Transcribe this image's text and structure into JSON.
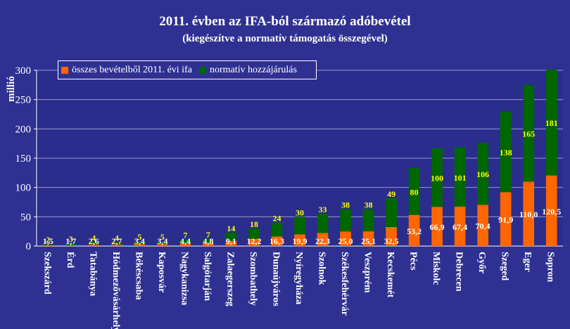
{
  "colors": {
    "background": "#2e3192",
    "plot_area": "#2a2d8c",
    "series_ifa": "#ff6600",
    "series_normativ": "#006600",
    "grid": "#9999cc",
    "label_ifa": "#ffffff",
    "label_normativ": "#ffff00"
  },
  "chart_data": {
    "type": "bar",
    "stacked": true,
    "title": "2011. évben az IFA-ból származó adóbevétel",
    "subtitle": "(kiegészítve a normatív támogatás összegével)",
    "ylabel": "millió",
    "xlabel": "",
    "ylim": [
      0,
      300
    ],
    "yticks": [
      0,
      50,
      100,
      150,
      200,
      250,
      300
    ],
    "grid": true,
    "legend_position": "top-left",
    "categories": [
      "Szekszárd",
      "Érd",
      "Tatabánya",
      "Hódmezővásárhely",
      "Békéscsaba",
      "Kaposvár",
      "Nagykanizsa",
      "Salgótarján",
      "Zalaegerszeg",
      "Szombathely",
      "Dunaújváros",
      "Nyíregyháza",
      "Szolnok",
      "Székesfehérvár",
      "Veszprém",
      "Kecskemét",
      "Pécs",
      "Miskolc",
      "Debrecen",
      "Győr",
      "Szeged",
      "Eger",
      "Sopron"
    ],
    "series": [
      {
        "name": "összes bevételből 2011. évi ifa",
        "values": [
          1.5,
          1.7,
          2.6,
          2.7,
          3.4,
          3.4,
          4.4,
          4.8,
          9.1,
          12.2,
          16.3,
          19.9,
          22.3,
          25.0,
          25.1,
          32.5,
          53.2,
          66.9,
          67.4,
          70.4,
          91.9,
          110.0,
          120.5
        ],
        "labels": [
          "1,5",
          "1,7",
          "2,6",
          "2,7",
          "3,4",
          "3,4",
          "4,4",
          "4,8",
          "9,1",
          "12,2",
          "16,3",
          "19,9",
          "22,3",
          "25,0",
          "25,1",
          "32,5",
          "53,2",
          "66,9",
          "67,4",
          "70,4",
          "91,9",
          "110,0",
          "120,5"
        ]
      },
      {
        "name": "normatív hozzájárulás",
        "values": [
          2,
          3,
          4,
          4,
          5,
          5,
          7,
          7,
          14,
          18,
          24,
          30,
          33,
          38,
          38,
          49,
          80,
          100,
          101,
          106,
          138,
          165,
          181
        ],
        "labels": [
          "2",
          "3",
          "4",
          "4",
          "5",
          "5",
          "7",
          "7",
          "14",
          "18",
          "24",
          "30",
          "33",
          "38",
          "38",
          "49",
          "80",
          "100",
          "101",
          "106",
          "138",
          "165",
          "181"
        ]
      }
    ]
  }
}
